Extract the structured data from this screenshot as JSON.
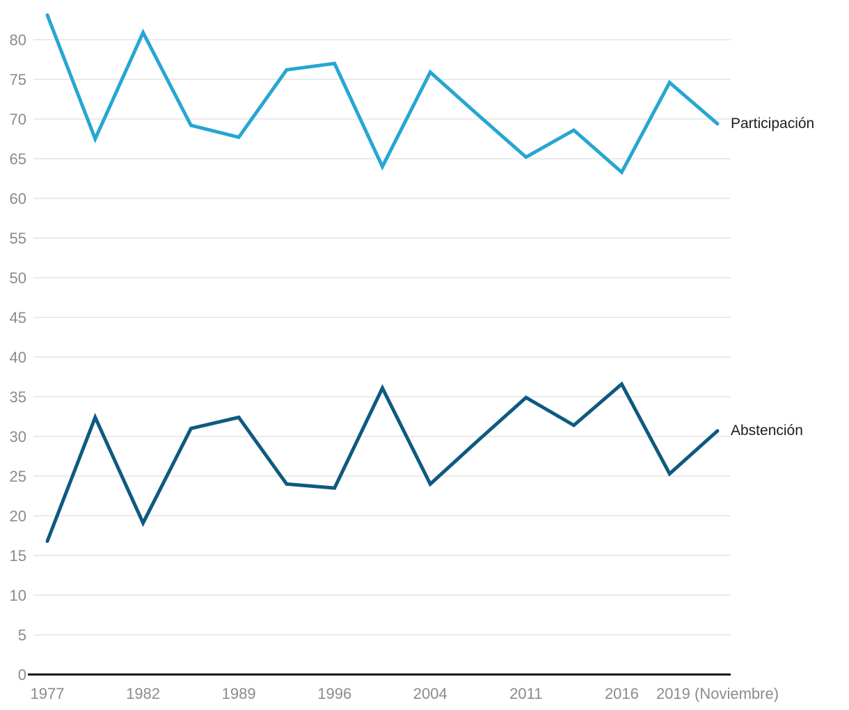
{
  "chart_data": {
    "type": "line",
    "title": "",
    "xlabel": "",
    "ylabel": "",
    "n_points": 15,
    "x_tick_labels": [
      "1977",
      "1982",
      "1989",
      "1996",
      "2004",
      "2011",
      "2016",
      "2019 (Noviembre)"
    ],
    "x_tick_indices": [
      0,
      2,
      4,
      6,
      8,
      10,
      12,
      14
    ],
    "ylim": [
      0,
      84
    ],
    "yticks": [
      0,
      5,
      10,
      15,
      20,
      25,
      30,
      35,
      40,
      45,
      50,
      55,
      60,
      65,
      70,
      75,
      80
    ],
    "grid": "horizontal",
    "legend_position": "line-end-labels",
    "series": [
      {
        "label": "Participación",
        "color": "#27a6d2",
        "values": [
          83.1,
          67.5,
          80.9,
          69.2,
          67.7,
          76.2,
          77.0,
          64.0,
          75.9,
          70.5,
          65.2,
          68.6,
          63.3,
          74.6,
          69.4
        ]
      },
      {
        "label": "Abstención",
        "color": "#0e5a80",
        "values": [
          16.8,
          32.4,
          19.1,
          31.0,
          32.4,
          24.0,
          23.5,
          36.1,
          24.0,
          29.5,
          34.9,
          31.4,
          36.6,
          25.3,
          30.7
        ]
      }
    ],
    "colors": {
      "grid": "#e3e3e3",
      "axis": "#111111",
      "tick_label": "#8b8b8b",
      "series_label": "#1d1d1d"
    }
  }
}
